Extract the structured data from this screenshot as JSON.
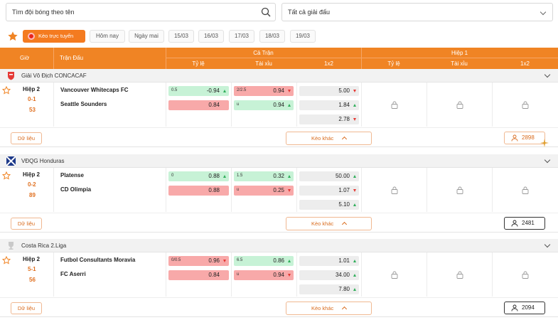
{
  "search": {
    "placeholder": "Tìm đội bóng theo tên"
  },
  "league_filter": {
    "value": "Tất cả giải đấu"
  },
  "datebar": {
    "live_label": "Kèo trực tuyến",
    "dates": [
      "Hôm nay",
      "Ngày mai",
      "15/03",
      "16/03",
      "17/03",
      "18/03",
      "19/03"
    ]
  },
  "table_header": {
    "time": "Giờ",
    "match": "Trận Đấu",
    "full_match": "Cả Trận",
    "first_half": "Hiệp 1",
    "handicap": "Tỷ lệ",
    "over_under": "Tài xỉu",
    "one_x_two": "1x2",
    "handicap_h1": "Tỷ lệ",
    "over_under_h1": "Tài xỉu",
    "one_x_two_h1": "1x2"
  },
  "colors": {
    "accent": "#f08424",
    "live": "#f47b20",
    "odds_up": "#2fae5a",
    "odds_down": "#e53935"
  },
  "actions": {
    "data_label": "Dữ liệu",
    "other_odds_label": "Kèo khác"
  },
  "leagues": [
    {
      "name": "Giải Vô Địch CONCACAF",
      "logo": "concacaf-logo-icon",
      "match": {
        "period": "Hiệp 2",
        "score": "0-1",
        "minute": "53",
        "home": "Vancouver Whitecaps FC",
        "away": "Seattle Sounders",
        "hdp_line": "0.5",
        "hdp_home": "-0.94",
        "hdp_home_dir": "up",
        "hdp_away": "0.84",
        "ou_line": "2/2.5",
        "ou_over": "0.94",
        "ou_over_dir": "down",
        "ou_under_line": "u",
        "ou_under": "0.94",
        "ou_under_dir": "up",
        "x1": "5.00",
        "x1_dir": "down",
        "x2": "1.84",
        "x2_dir": "up",
        "xd": "2.78",
        "xd_dir": "down",
        "count": "2898"
      }
    },
    {
      "name": "VĐQG Honduras",
      "logo": "honduras-flag-icon",
      "match": {
        "period": "Hiệp 2",
        "score": "0-2",
        "minute": "89",
        "home": "Platense",
        "away": "CD Olimpia",
        "hdp_line": "0",
        "hdp_home": "0.88",
        "hdp_home_dir": "up",
        "hdp_away": "0.88",
        "ou_line": "1.5",
        "ou_over": "0.32",
        "ou_over_dir": "up",
        "ou_under_line": "u",
        "ou_under": "0.25",
        "ou_under_dir": "down",
        "x1": "50.00",
        "x1_dir": "up",
        "x2": "1.07",
        "x2_dir": "down",
        "xd": "5.10",
        "xd_dir": "up",
        "count": "2481"
      }
    },
    {
      "name": "Costa Rica 2.Liga",
      "logo": "trophy-icon",
      "match": {
        "period": "Hiệp 2",
        "score": "5-1",
        "minute": "56",
        "home": "Futbol Consultants Moravia",
        "away": "FC Aserri",
        "hdp_line": "0/0.5",
        "hdp_home": "0.96",
        "hdp_home_dir": "down",
        "hdp_away": "0.84",
        "ou_line": "6.5",
        "ou_over": "0.86",
        "ou_over_dir": "up",
        "ou_under_line": "u",
        "ou_under": "0.94",
        "ou_under_dir": "down",
        "x1": "1.01",
        "x1_dir": "up",
        "x2": "34.00",
        "x2_dir": "up",
        "xd": "7.80",
        "xd_dir": "up",
        "count": "2094"
      }
    }
  ]
}
